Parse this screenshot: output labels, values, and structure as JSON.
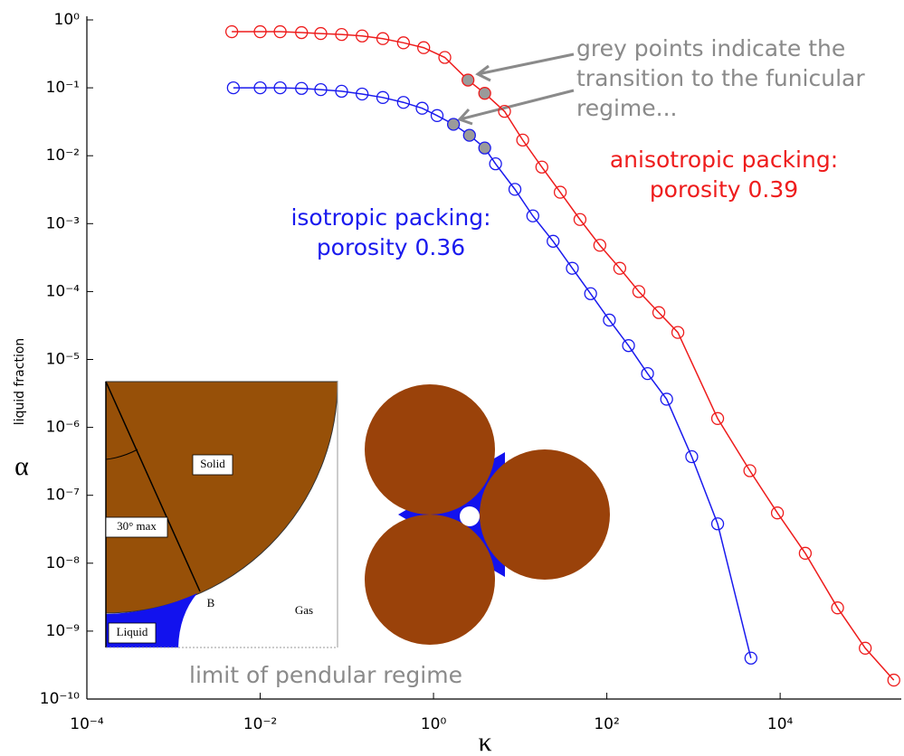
{
  "chart_data": {
    "type": "line",
    "log_x": true,
    "log_y": true,
    "grid": false,
    "xlabel": "κ",
    "ylabel": "liquid fraction",
    "ysymbol": "α",
    "xlim": [
      0.0001,
      250000
    ],
    "ylim": [
      1e-10,
      1
    ],
    "xticks": [
      {
        "value": 0.0001,
        "label": "10⁻⁴"
      },
      {
        "value": 0.01,
        "label": "10⁻²"
      },
      {
        "value": 1,
        "label": "10⁰"
      },
      {
        "value": 100,
        "label": "10²"
      },
      {
        "value": 10000,
        "label": "10⁴"
      }
    ],
    "yticks": [
      {
        "value": 1,
        "label": "10⁰"
      },
      {
        "value": 0.1,
        "label": "10⁻¹"
      },
      {
        "value": 0.01,
        "label": "10⁻²"
      },
      {
        "value": 0.001,
        "label": "10⁻³"
      },
      {
        "value": 0.0001,
        "label": "10⁻⁴"
      },
      {
        "value": 1e-05,
        "label": "10⁻⁵"
      },
      {
        "value": 1e-06,
        "label": "10⁻⁶"
      },
      {
        "value": 1e-07,
        "label": "10⁻⁷"
      },
      {
        "value": 1e-08,
        "label": "10⁻⁸"
      },
      {
        "value": 1e-09,
        "label": "10⁻⁹"
      },
      {
        "value": 1e-10,
        "label": "10⁻¹⁰"
      }
    ],
    "highlight_color": "#9a9a9a",
    "series": [
      {
        "color": "#ee1c1c",
        "x": [
          0.0047,
          0.01,
          0.017,
          0.03,
          0.05,
          0.087,
          0.15,
          0.26,
          0.45,
          0.77,
          1.35,
          2.5,
          3.9,
          6.6,
          10.7,
          17.8,
          29,
          49,
          83,
          141,
          234,
          398,
          660,
          1900,
          4470,
          9300,
          19500,
          46000,
          96000,
          205000
        ],
        "values": [
          0.67,
          0.67,
          0.67,
          0.65,
          0.63,
          0.61,
          0.58,
          0.53,
          0.46,
          0.39,
          0.28,
          0.13,
          0.083,
          0.045,
          0.017,
          0.0068,
          0.0029,
          0.00115,
          0.00048,
          0.00022,
          0.0001,
          4.9e-05,
          2.5e-05,
          1.35e-06,
          2.3e-07,
          5.5e-08,
          1.4e-08,
          2.2e-09,
          5.6e-10,
          1.9e-10
        ],
        "highlighted": [
          11,
          12
        ]
      },
      {
        "color": "#1a1aee",
        "x": [
          0.0049,
          0.01,
          0.017,
          0.03,
          0.05,
          0.087,
          0.15,
          0.26,
          0.45,
          0.74,
          1.1,
          1.7,
          2.6,
          3.9,
          5.2,
          8.7,
          14,
          24,
          40,
          65,
          107,
          178,
          295,
          490,
          955,
          1900,
          4600
        ],
        "values": [
          0.1,
          0.1,
          0.1,
          0.098,
          0.094,
          0.089,
          0.081,
          0.072,
          0.061,
          0.05,
          0.039,
          0.029,
          0.02,
          0.013,
          0.0076,
          0.0032,
          0.0013,
          0.00055,
          0.00022,
          9.3e-05,
          3.8e-05,
          1.6e-05,
          6.2e-06,
          2.6e-06,
          3.7e-07,
          3.8e-08,
          4e-10
        ],
        "highlighted": [
          11,
          12,
          13
        ]
      }
    ],
    "annotations": [
      {
        "lines": [
          "grey points indicate the",
          "transition to the funicular",
          "regime..."
        ],
        "color": "#8a8a8a"
      },
      {
        "lines": [
          "anisotropic packing:",
          "porosity 0.39"
        ],
        "color": "#ee1c1c"
      },
      {
        "lines": [
          "isotropic packing:",
          "porosity 0.36"
        ],
        "color": "#1a1aee"
      },
      {
        "lines": [
          "limit of pendular regime"
        ],
        "color": "#8a8a8a"
      }
    ],
    "inset_labels": [
      "Solid",
      "30° max",
      "B",
      "Gas",
      "Liquid"
    ]
  }
}
